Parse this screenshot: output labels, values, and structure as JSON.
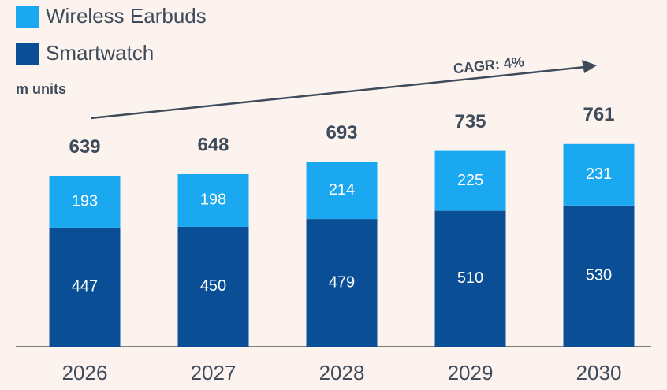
{
  "chart_data": {
    "type": "stacked_bar",
    "unit_label": "m units",
    "annotation": "CAGR: 4%",
    "categories": [
      "2026",
      "2027",
      "2028",
      "2029",
      "2030"
    ],
    "series": [
      {
        "name": "Wireless Earbuds",
        "color": "#1aa9f0",
        "values": [
          193,
          198,
          214,
          225,
          231
        ]
      },
      {
        "name": "Smartwatch",
        "color": "#0a4f96",
        "values": [
          447,
          450,
          479,
          510,
          530
        ]
      }
    ],
    "totals": [
      639,
      648,
      693,
      735,
      761
    ]
  }
}
